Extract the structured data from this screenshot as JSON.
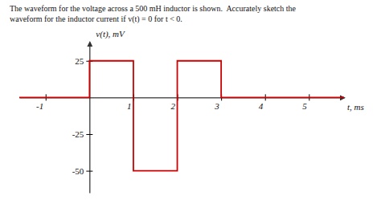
{
  "chart_data": {
    "type": "line",
    "title": "The waveform for the voltage across a 500 mH inductor is shown.  Accurately sketch the",
    "subtitle": "waveform for the inductor current if v(t) = 0 for t < 0.",
    "xlabel": "t, ms",
    "ylabel": "v(t), mV",
    "x": [
      -1.6,
      0,
      0,
      1,
      1,
      2,
      2,
      3,
      3,
      5.8
    ],
    "series": [
      {
        "name": "v(t)",
        "color": "#cc0000",
        "values": [
          0,
          0,
          25,
          25,
          -50,
          -50,
          25,
          25,
          0,
          0
        ]
      }
    ],
    "xlim": [
      -1.6,
      5.8
    ],
    "ylim": [
      -65,
      38
    ],
    "xticks": [
      -1,
      1,
      2,
      3,
      4,
      5
    ],
    "yticks": [
      25,
      -25,
      -50
    ],
    "grid": false
  }
}
